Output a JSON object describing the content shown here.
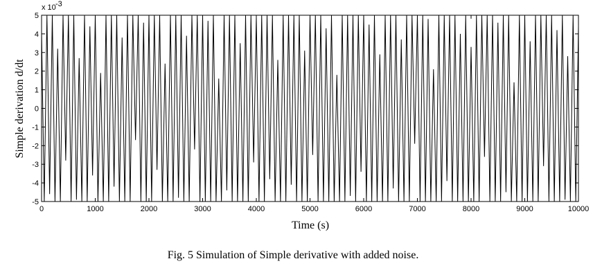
{
  "chart_data": {
    "type": "line",
    "x_label": "Time (s)",
    "y_label": "Simple derivation d/dt",
    "y_multiplier": {
      "base": "x 10",
      "exponent": "-3"
    },
    "caption": "Fig. 5 Simulation of Simple derivative with added noise.",
    "xlim": [
      0,
      10000
    ],
    "ylim": [
      -5,
      5
    ],
    "xticks": [
      0,
      1000,
      2000,
      3000,
      4000,
      5000,
      6000,
      7000,
      8000,
      9000,
      10000
    ],
    "yticks": [
      -5,
      -4,
      -3,
      -2,
      -1,
      0,
      1,
      2,
      3,
      4,
      5
    ],
    "color": "#000000",
    "x": [
      0,
      50,
      100,
      150,
      200,
      250,
      300,
      350,
      400,
      450,
      500,
      550,
      600,
      650,
      700,
      750,
      800,
      850,
      900,
      950,
      1000,
      1050,
      1100,
      1150,
      1200,
      1250,
      1300,
      1350,
      1400,
      1450,
      1500,
      1550,
      1600,
      1650,
      1700,
      1750,
      1800,
      1850,
      1900,
      1950,
      2000,
      2050,
      2100,
      2150,
      2200,
      2250,
      2300,
      2350,
      2400,
      2450,
      2500,
      2550,
      2600,
      2650,
      2700,
      2750,
      2800,
      2850,
      2900,
      2950,
      3000,
      3050,
      3100,
      3150,
      3200,
      3250,
      3300,
      3350,
      3400,
      3450,
      3500,
      3550,
      3600,
      3650,
      3700,
      3750,
      3800,
      3850,
      3900,
      3950,
      4000,
      4050,
      4100,
      4150,
      4200,
      4250,
      4300,
      4350,
      4400,
      4450,
      4500,
      4550,
      4600,
      4650,
      4700,
      4750,
      4800,
      4850,
      4900,
      4950,
      5000,
      5050,
      5100,
      5150,
      5200,
      5250,
      5300,
      5350,
      5400,
      5450,
      5500,
      5550,
      5600,
      5650,
      5700,
      5750,
      5800,
      5850,
      5900,
      5950,
      6000,
      6050,
      6100,
      6150,
      6200,
      6250,
      6300,
      6350,
      6400,
      6450,
      6500,
      6550,
      6600,
      6650,
      6700,
      6750,
      6800,
      6850,
      6900,
      6950,
      7000,
      7050,
      7100,
      7150,
      7200,
      7250,
      7300,
      7350,
      7400,
      7450,
      7500,
      7550,
      7600,
      7650,
      7700,
      7750,
      7800,
      7850,
      7900,
      7950,
      8000,
      8050,
      8100,
      8150,
      8200,
      8250,
      8300,
      8350,
      8400,
      8450,
      8500,
      8550,
      8600,
      8650,
      8700,
      8750,
      8800,
      8850,
      8900,
      8950,
      9000,
      9050,
      9100,
      9150,
      9200,
      9250,
      9300,
      9350,
      9400,
      9450,
      9500,
      9550,
      9600,
      9650,
      9700,
      9750,
      9800,
      9850,
      9900,
      9950,
      10000
    ],
    "values": [
      4.1,
      -5,
      5,
      -4.6,
      5,
      -5,
      3.2,
      -5,
      5,
      -2.8,
      5,
      -5,
      5,
      -4.9,
      2.7,
      -5,
      5,
      -5,
      4.4,
      -3.6,
      5,
      -5,
      1.9,
      -5,
      5,
      -5,
      5,
      -4.2,
      5,
      -5,
      3.8,
      -5,
      5,
      -5,
      5,
      -1.7,
      5,
      -5,
      4.6,
      -5,
      5,
      -5,
      5,
      -3.3,
      5,
      -5,
      2.4,
      -5,
      5,
      -5,
      5,
      -4.8,
      5,
      -5,
      3.9,
      -5,
      5,
      -2.2,
      5,
      -5,
      5,
      -5,
      4.7,
      -5,
      5,
      -5,
      1.6,
      -5,
      5,
      -4.4,
      5,
      -5,
      5,
      -5,
      3.5,
      -5,
      5,
      -5,
      5,
      -2.9,
      4.9,
      -5,
      5,
      -5,
      5,
      -3.8,
      5,
      -5,
      2.6,
      -5,
      5,
      -5,
      5,
      -4.1,
      5,
      -5,
      5,
      -5,
      3.1,
      -5,
      5,
      -2.5,
      5,
      -5,
      5,
      -5,
      4.3,
      -5,
      5,
      -5,
      1.8,
      -5,
      5,
      -5,
      5,
      -4.7,
      5,
      -5,
      5,
      -3.4,
      5,
      -5,
      4.5,
      -5,
      5,
      -5,
      2.9,
      -5,
      5,
      -5,
      5,
      -4.3,
      5,
      -5,
      3.7,
      -5,
      5,
      -5,
      5,
      -1.9,
      5,
      -5,
      5,
      -5,
      4.8,
      -5,
      2.1,
      -5,
      5,
      -5,
      5,
      -3.9,
      5,
      -5,
      5,
      -5,
      4.0,
      -5,
      5,
      -5,
      3.3,
      -5,
      5,
      -5,
      5,
      -2.6,
      5,
      -5,
      5,
      -5,
      4.6,
      -5,
      5,
      -4.5,
      5,
      -5,
      1.4,
      -5,
      5,
      -5,
      5,
      -5,
      3.6,
      -5,
      5,
      -5,
      5,
      -3.1,
      5,
      -5,
      5,
      -5,
      4.2,
      -5,
      5,
      -4.9,
      2.8,
      -5,
      5,
      -5,
      4.4
    ]
  }
}
